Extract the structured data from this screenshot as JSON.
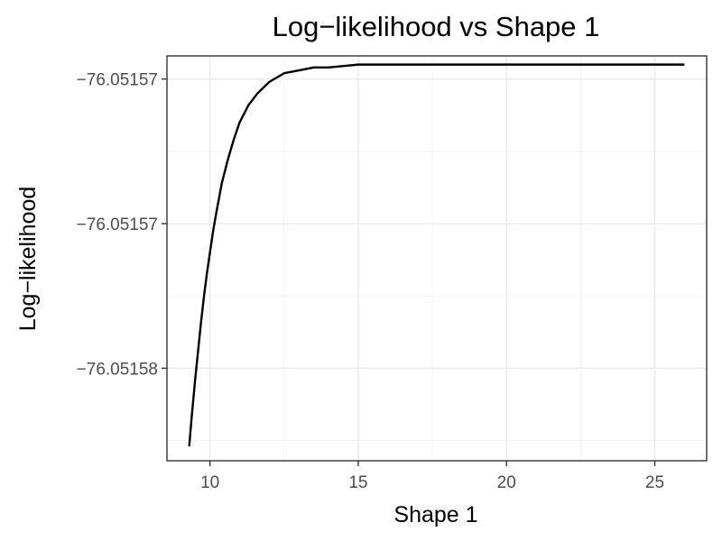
{
  "chart_data": {
    "type": "line",
    "title": "Log−likelihood vs Shape 1",
    "xlabel": "Shape 1",
    "ylabel": "Log−likelihood",
    "xlim": [
      8.55,
      26.75
    ],
    "ylim": [
      -76.0515832,
      -76.0515692
    ],
    "x_ticks": [
      10,
      15,
      20,
      25
    ],
    "x_tick_labels": [
      "10",
      "15",
      "20",
      "25"
    ],
    "y_ticks": [
      -76.05157,
      -76.051575,
      -76.05158
    ],
    "y_tick_labels": [
      "−76.05157",
      "−76.05157",
      "−76.05158"
    ],
    "grid": true,
    "legend": "none",
    "series": [
      {
        "color": "#000000",
        "x": [
          9.3,
          9.4,
          9.5,
          9.6,
          9.7,
          9.8,
          9.9,
          10.0,
          10.1,
          10.2,
          10.4,
          10.6,
          10.8,
          11.0,
          11.3,
          11.6,
          12.0,
          12.5,
          13.0,
          13.5,
          14.0,
          15.0,
          16.0,
          18.0,
          20.0,
          22.0,
          24.0,
          26.0
        ],
        "y": [
          -76.0515827,
          -76.0515815,
          -76.0515804,
          -76.0515794,
          -76.0515784,
          -76.0515775,
          -76.0515767,
          -76.051576,
          -76.0515753,
          -76.0515747,
          -76.0515736,
          -76.0515728,
          -76.0515721,
          -76.0515715,
          -76.0515709,
          -76.0515705,
          -76.0515701,
          -76.0515698,
          -76.0515697,
          -76.0515696,
          -76.0515696,
          -76.0515695,
          -76.0515695,
          -76.0515695,
          -76.0515695,
          -76.0515695,
          -76.0515695,
          -76.0515695
        ]
      }
    ]
  }
}
